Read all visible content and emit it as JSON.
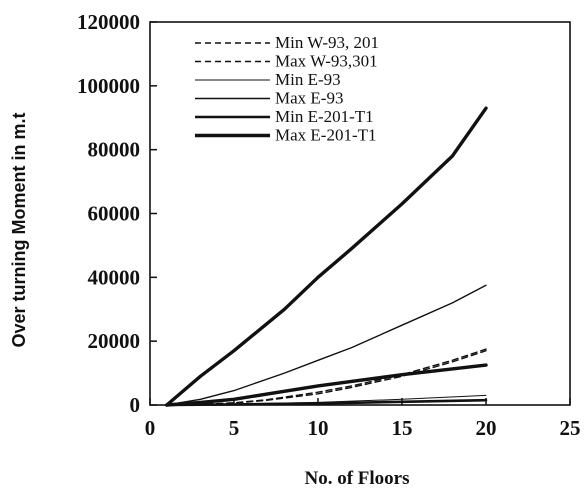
{
  "chart_data": {
    "type": "line",
    "xlabel": "No. of Floors",
    "ylabel": "Over turning Moment  in m.t",
    "xlim": [
      0,
      25
    ],
    "ylim": [
      0,
      120000
    ],
    "x_ticks": [
      "0",
      "5",
      "10",
      "15",
      "20",
      "25"
    ],
    "y_ticks": [
      "0",
      "20000",
      "40000",
      "60000",
      "80000",
      "100000",
      "120000"
    ],
    "grid": false,
    "legend_position": "top-left",
    "series": [
      {
        "name": "Min W-93, 201",
        "style": "dashed-thin",
        "x": [
          1,
          3,
          5,
          7,
          10,
          12,
          15,
          18,
          20
        ],
        "y": [
          0,
          200,
          600,
          1500,
          3500,
          5500,
          9000,
          13500,
          17000
        ]
      },
      {
        "name": "Max W-93,301",
        "style": "dashed-thin",
        "x": [
          1,
          3,
          5,
          7,
          10,
          12,
          15,
          18,
          20
        ],
        "y": [
          0,
          250,
          700,
          1700,
          4000,
          6000,
          9500,
          14000,
          17500
        ]
      },
      {
        "name": "Min E-93",
        "style": "solid-thin",
        "x": [
          1,
          5,
          10,
          15,
          20
        ],
        "y": [
          0,
          300,
          800,
          1800,
          3000
        ]
      },
      {
        "name": "Max E-93",
        "style": "solid-medium",
        "x": [
          1,
          3,
          5,
          8,
          10,
          12,
          15,
          18,
          20
        ],
        "y": [
          0,
          1800,
          4500,
          10000,
          14000,
          18000,
          25000,
          32000,
          37500
        ]
      },
      {
        "name": "Min E-201-T1",
        "style": "solid-thick",
        "x": [
          1,
          5,
          10,
          15,
          20
        ],
        "y": [
          0,
          200,
          500,
          1000,
          1500
        ]
      },
      {
        "name": "Max E-201-T1",
        "style": "solid-thickest",
        "x": [
          1,
          3,
          5,
          10,
          15,
          20
        ],
        "y": [
          0,
          800,
          1800,
          6000,
          9500,
          12500
        ]
      },
      {
        "name": "",
        "style": "solid-thickest",
        "x": [
          1,
          3,
          5,
          8,
          10,
          12,
          15,
          18,
          20
        ],
        "y": [
          0,
          9000,
          17000,
          30000,
          40000,
          49000,
          63000,
          78000,
          93000
        ]
      }
    ]
  },
  "colors": {
    "ink": "#111111",
    "background": "#ffffff"
  }
}
